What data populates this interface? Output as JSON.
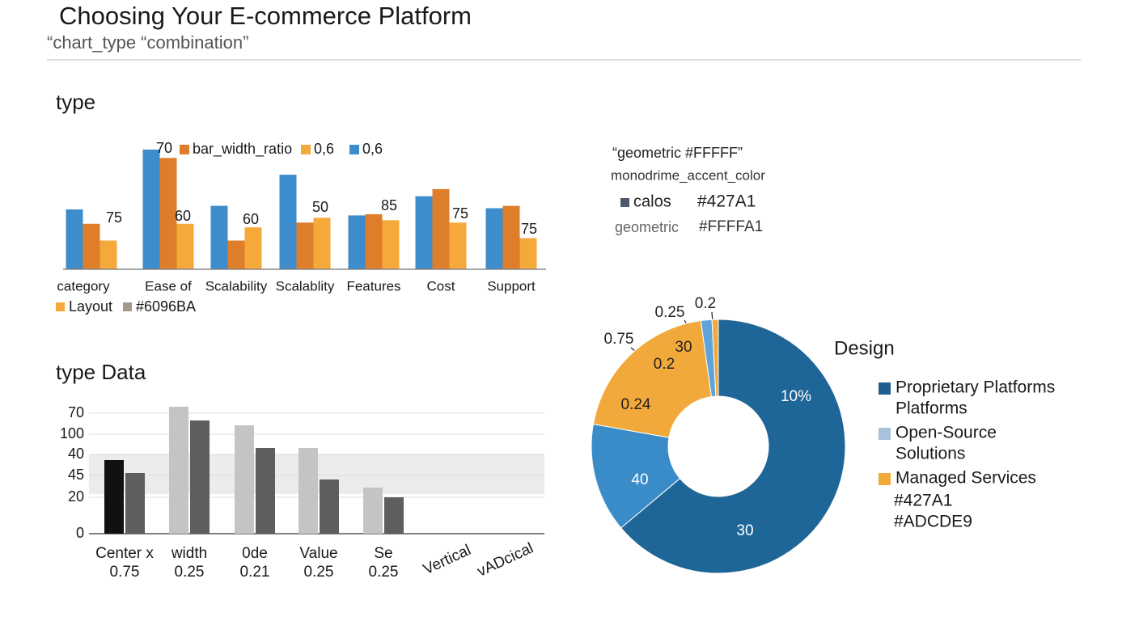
{
  "header": {
    "title": "Choosing Your E-commerce Platform",
    "subtitle": "“chart_type “combination”"
  },
  "chart_data": [
    {
      "type": "bar",
      "title": "type",
      "categories": [
        "category",
        "Ease of",
        "Scalability",
        "Scalablity",
        "Features",
        "Cost",
        "Support"
      ],
      "ylim": [
        0,
        100
      ],
      "series": [
        {
          "name": "bar_width_ratio",
          "color": "#de7d2a",
          "values": [
            38,
            93,
            24,
            39,
            46,
            67,
            53
          ]
        },
        {
          "name": "0,6",
          "color": "#f5a93a",
          "values": [
            24,
            38,
            35,
            43,
            41,
            39,
            26
          ]
        },
        {
          "name": "0,6",
          "color": "#3d8ccb",
          "values": [
            50,
            100,
            53,
            79,
            45,
            61,
            51
          ]
        }
      ],
      "extra_legend": [
        {
          "name": "Layout",
          "color": "#f5a93a"
        },
        {
          "name": "#6096BA",
          "color": "#a39a8e"
        }
      ],
      "annotations": [
        "70",
        "75",
        "60",
        "60",
        "50",
        "85",
        "75",
        "75"
      ]
    },
    {
      "type": "bar",
      "title": "type Data",
      "categories": [
        "Center x",
        "width",
        "0de",
        "Value",
        "Se",
        "Vertical",
        "vADcical"
      ],
      "category_sublabels": [
        "0.75",
        "0.25",
        "0.21",
        "0.25",
        "0.25",
        null,
        null
      ],
      "ylim": [
        0,
        160
      ],
      "yticks": [
        {
          "value": 149,
          "label": "70"
        },
        {
          "value": 123,
          "label": "100"
        },
        {
          "value": 98,
          "label": "40"
        },
        {
          "value": 72,
          "label": "45"
        },
        {
          "value": 45,
          "label": "20"
        },
        0
      ],
      "grid": true,
      "series": [
        {
          "color": "#c4c4c4",
          "colors": [
            "#111111",
            "#c4c4c4",
            "#c4c4c4",
            "#c4c4c4",
            "#c4c4c4",
            "#c4c4c4",
            "#c4c4c4"
          ],
          "values": [
            91,
            157,
            134,
            106,
            57,
            null,
            null
          ]
        },
        {
          "color": "#5e5e5e",
          "values": [
            75,
            140,
            106,
            67,
            45,
            null,
            null
          ]
        }
      ]
    },
    {
      "type": "donut",
      "values": [
        63.9,
        13.9,
        20,
        1.4,
        0.8
      ],
      "colors": [
        "#1f6698",
        "#3a8cc8",
        "#f2a93b",
        "#5ea4d8",
        "#f2a93b"
      ],
      "annotations": [
        "10%",
        "30",
        "40",
        "0.24",
        "0.2",
        "30",
        "0.75",
        "0.25",
        "0.2"
      ],
      "legend_title": "Design",
      "legend": [
        {
          "lines": [
            "Proprietary Platforms",
            "Platforms"
          ],
          "color": "#1f5e8e"
        },
        {
          "lines": [
            "Open-Source",
            "Solutions"
          ],
          "color": "#a9c2dc"
        },
        {
          "lines": [
            "Managed Services"
          ],
          "color": "#f2a93b"
        }
      ],
      "legend_notes": [
        "#427A1",
        "#ADCDE9"
      ]
    }
  ],
  "notes": [
    "“geometric #FFFFF”",
    "monodrime_accent_color",
    "calos",
    "#427A1",
    "geometric",
    "#FFFFA1"
  ]
}
